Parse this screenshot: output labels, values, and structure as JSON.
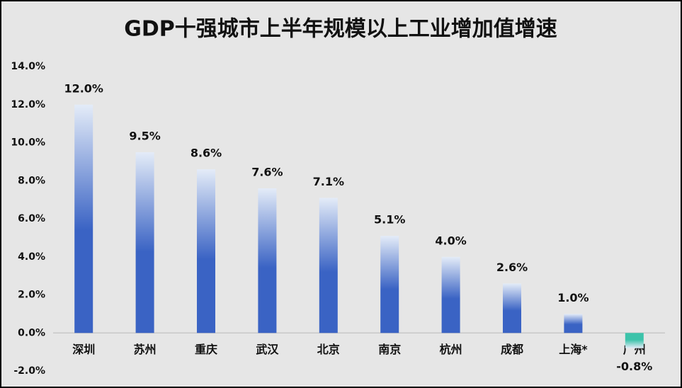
{
  "chart_data": {
    "type": "bar",
    "title": "GDP十强城市上半年规模以上工业增加值增速",
    "categories": [
      "深圳",
      "苏州",
      "重庆",
      "武汉",
      "北京",
      "南京",
      "杭州",
      "成都",
      "上海*",
      "广州"
    ],
    "values": [
      12.0,
      9.5,
      8.6,
      7.6,
      7.1,
      5.1,
      4.0,
      2.6,
      1.0,
      -0.8
    ],
    "value_labels": [
      "12.0%",
      "9.5%",
      "8.6%",
      "7.6%",
      "7.1%",
      "5.1%",
      "4.0%",
      "2.6%",
      "1.0%",
      "-0.8%"
    ],
    "color": "#3a63c4",
    "negative_color": "#3cc3aa",
    "ylim": [
      -2,
      14
    ],
    "yticks": [
      {
        "value": -2,
        "label": "-2.0%"
      },
      {
        "value": 0,
        "label": "0.0%"
      },
      {
        "value": 2,
        "label": "2.0%"
      },
      {
        "value": 4,
        "label": "4.0%"
      },
      {
        "value": 6,
        "label": "6.0%"
      },
      {
        "value": 8,
        "label": "8.0%"
      },
      {
        "value": 10,
        "label": "10.0%"
      },
      {
        "value": 12,
        "label": "12.0%"
      },
      {
        "value": 14,
        "label": "14.0%"
      }
    ],
    "grid": false
  }
}
